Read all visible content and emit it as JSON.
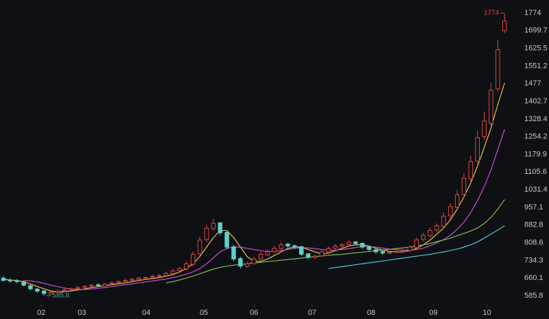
{
  "chart_data": {
    "type": "candlestick",
    "x": [
      0,
      1,
      2,
      3,
      4,
      5,
      6,
      7,
      8,
      9,
      10,
      11,
      12,
      13,
      14,
      15,
      16,
      17,
      18,
      19,
      20,
      21,
      22,
      23,
      24,
      25,
      26,
      27,
      28,
      29,
      30,
      31,
      32,
      33,
      34,
      35,
      36,
      37,
      38,
      39,
      40,
      41,
      42,
      43,
      44,
      45,
      46,
      47,
      48,
      49,
      50,
      51,
      52,
      53,
      54,
      55,
      56,
      57,
      58,
      59,
      60,
      61,
      62,
      63,
      64,
      65,
      66,
      67,
      68,
      69,
      70,
      71,
      72,
      73,
      74
    ],
    "open": [
      660,
      652,
      649,
      645,
      628,
      614,
      606,
      594,
      600,
      606,
      611,
      616,
      620,
      626,
      632,
      627,
      636,
      641,
      646,
      651,
      654,
      661,
      663,
      669,
      671,
      679,
      691,
      699,
      718,
      762,
      822,
      868,
      892,
      852,
      792,
      742,
      709,
      721,
      741,
      758,
      771,
      784,
      803,
      796,
      792,
      762,
      747,
      753,
      769,
      786,
      794,
      801,
      812,
      806,
      791,
      779,
      772,
      764,
      769,
      771,
      776,
      788,
      822,
      838,
      862,
      878,
      922,
      958,
      1012,
      1078,
      1152,
      1255,
      1310,
      1455,
      1700
    ],
    "high": [
      668,
      660,
      656,
      650,
      632,
      618,
      610,
      606,
      612,
      616,
      620,
      626,
      630,
      636,
      638,
      640,
      646,
      650,
      656,
      660,
      666,
      668,
      674,
      678,
      688,
      698,
      708,
      730,
      772,
      835,
      885,
      910,
      895,
      860,
      800,
      750,
      730,
      750,
      770,
      780,
      795,
      812,
      808,
      800,
      795,
      765,
      760,
      778,
      792,
      802,
      808,
      820,
      816,
      810,
      795,
      785,
      776,
      775,
      780,
      782,
      798,
      830,
      850,
      872,
      890,
      935,
      975,
      1030,
      1100,
      1175,
      1280,
      1360,
      1480,
      1660,
      1774
    ],
    "low": [
      645,
      640,
      638,
      625,
      608,
      598,
      585.8,
      590,
      596,
      602,
      606,
      610,
      614,
      620,
      622,
      624,
      630,
      636,
      640,
      646,
      650,
      654,
      658,
      662,
      666,
      672,
      684,
      692,
      710,
      752,
      810,
      858,
      840,
      780,
      730,
      700,
      704,
      715,
      735,
      752,
      764,
      778,
      788,
      782,
      752,
      740,
      742,
      748,
      762,
      780,
      788,
      795,
      798,
      782,
      772,
      762,
      758,
      760,
      764,
      766,
      770,
      782,
      815,
      830,
      852,
      870,
      910,
      948,
      1000,
      1065,
      1140,
      1240,
      1300,
      1440,
      1690
    ],
    "close": [
      650,
      648,
      645,
      630,
      615,
      605,
      595,
      600,
      605,
      610,
      615,
      620,
      625,
      630,
      628,
      635,
      640,
      645,
      650,
      655,
      660,
      662,
      668,
      670,
      680,
      690,
      700,
      720,
      760,
      820,
      870,
      890,
      850,
      790,
      740,
      710,
      720,
      740,
      760,
      770,
      785,
      800,
      795,
      790,
      760,
      748,
      752,
      770,
      785,
      795,
      800,
      810,
      805,
      790,
      780,
      770,
      765,
      768,
      772,
      775,
      790,
      820,
      840,
      860,
      880,
      920,
      960,
      1010,
      1080,
      1150,
      1250,
      1320,
      1450,
      1620,
      1740
    ],
    "up_color": "#e0473f",
    "down_color": "#5fd0c8",
    "ma_lines": [
      {
        "color": "#e8c34a",
        "values": [
          655,
          652,
          650,
          645,
          635,
          625,
          615,
          606,
          602,
          603,
          606,
          610,
          614,
          620,
          624,
          628,
          632,
          636,
          640,
          645,
          650,
          654,
          658,
          662,
          668,
          675,
          685,
          700,
          720,
          750,
          790,
          830,
          860,
          860,
          830,
          790,
          750,
          730,
          730,
          740,
          755,
          770,
          785,
          790,
          790,
          780,
          770,
          762,
          765,
          775,
          785,
          795,
          800,
          800,
          795,
          785,
          778,
          772,
          770,
          770,
          775,
          785,
          800,
          820,
          845,
          870,
          905,
          950,
          1000,
          1060,
          1130,
          1210,
          1290,
          1390,
          1480
        ]
      },
      {
        "color": "#c84fd8",
        "values": [
          null,
          null,
          null,
          650,
          648,
          644,
          638,
          630,
          624,
          618,
          614,
          612,
          612,
          614,
          617,
          620,
          624,
          628,
          632,
          636,
          640,
          644,
          648,
          652,
          656,
          662,
          668,
          676,
          686,
          700,
          720,
          745,
          770,
          785,
          790,
          790,
          785,
          780,
          775,
          772,
          772,
          775,
          780,
          785,
          788,
          787,
          784,
          780,
          777,
          777,
          780,
          784,
          788,
          792,
          792,
          790,
          786,
          782,
          779,
          777,
          777,
          780,
          786,
          796,
          808,
          822,
          840,
          865,
          895,
          935,
          985,
          1045,
          1115,
          1200,
          1285
        ]
      },
      {
        "color": "#7ac04a",
        "values": [
          null,
          null,
          null,
          null,
          null,
          null,
          null,
          null,
          null,
          null,
          null,
          null,
          null,
          null,
          null,
          null,
          null,
          null,
          null,
          null,
          null,
          null,
          null,
          null,
          640,
          645,
          652,
          660,
          668,
          678,
          688,
          698,
          705,
          710,
          714,
          717,
          720,
          723,
          726,
          729,
          732,
          735,
          738,
          741,
          744,
          747,
          750,
          753,
          756,
          758,
          760,
          763,
          766,
          769,
          772,
          775,
          778,
          781,
          784,
          787,
          790,
          795,
          800,
          806,
          813,
          820,
          828,
          838,
          848,
          858,
          870,
          890,
          915,
          950,
          990
        ]
      },
      {
        "color": "#4fc9d8",
        "values": [
          null,
          null,
          null,
          null,
          null,
          null,
          null,
          null,
          null,
          null,
          null,
          null,
          null,
          null,
          null,
          null,
          null,
          null,
          null,
          null,
          null,
          null,
          null,
          null,
          null,
          null,
          null,
          null,
          null,
          null,
          null,
          null,
          null,
          null,
          null,
          null,
          null,
          null,
          null,
          null,
          null,
          null,
          null,
          null,
          null,
          null,
          null,
          null,
          700,
          704,
          708,
          712,
          716,
          720,
          724,
          728,
          732,
          736,
          740,
          744,
          748,
          752,
          756,
          760,
          765,
          770,
          776,
          782,
          790,
          800,
          812,
          828,
          845,
          862,
          880
        ]
      }
    ],
    "xlim": [
      -0.5,
      76
    ],
    "xticks": [
      {
        "value": 5.6,
        "label": "02"
      },
      {
        "value": 11.6,
        "label": "03"
      },
      {
        "value": 21.1,
        "label": "04"
      },
      {
        "value": 29.6,
        "label": "05"
      },
      {
        "value": 37,
        "label": "06"
      },
      {
        "value": 45.6,
        "label": "07"
      },
      {
        "value": 54.3,
        "label": "08"
      },
      {
        "value": 63.5,
        "label": "09"
      },
      {
        "value": 71.4,
        "label": "10"
      }
    ],
    "ylim": [
      548.4,
      1828.7
    ],
    "yticks": [
      585.8,
      660.1,
      734.3,
      808.6,
      882.8,
      957.1,
      1031.4,
      1105.6,
      1179.9,
      1254.2,
      1328.4,
      1402.7,
      1477,
      1551.2,
      1625.5,
      1699.7,
      1774
    ],
    "grid": false,
    "annotations": [
      {
        "text": "1774",
        "x": 74,
        "y": 1774,
        "color": "#e0473f",
        "side": "left"
      },
      {
        "text": "585.8",
        "x": 6,
        "y": 585.8,
        "color": "#4fa88a",
        "side": "right"
      }
    ]
  }
}
